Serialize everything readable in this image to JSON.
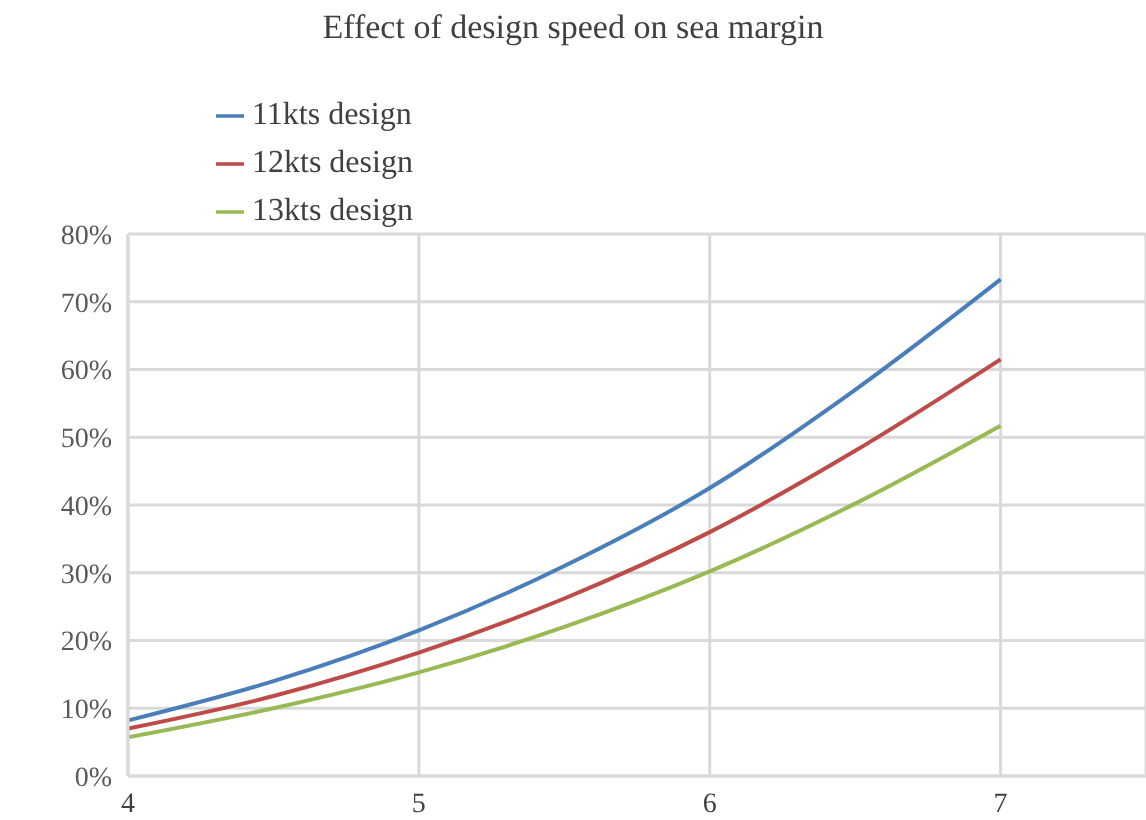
{
  "chart_data": {
    "type": "line",
    "title": "Effect of design speed on sea margin",
    "x": [
      4,
      4.5,
      5,
      5.5,
      6,
      6.5,
      7
    ],
    "series": [
      {
        "name": "11kts design",
        "color": "#4a7ebb",
        "values": [
          8.2,
          14,
          21.5,
          31,
          42.5,
          57,
          73.3
        ]
      },
      {
        "name": "12kts design",
        "color": "#be4b48",
        "values": [
          7,
          11.8,
          18.2,
          26.2,
          36,
          48,
          61.5
        ]
      },
      {
        "name": "13kts design",
        "color": "#98b954",
        "values": [
          5.7,
          10,
          15.3,
          22,
          30.2,
          40.2,
          51.7
        ]
      }
    ],
    "xlim": [
      4,
      7.5
    ],
    "xticks": [
      4,
      5,
      6,
      7
    ],
    "ylim": [
      0,
      80
    ],
    "yticks": [
      {
        "value": 0,
        "label": "0%"
      },
      {
        "value": 10,
        "label": "10%"
      },
      {
        "value": 20,
        "label": "20%"
      },
      {
        "value": 30,
        "label": "30%"
      },
      {
        "value": 40,
        "label": "40%"
      },
      {
        "value": 50,
        "label": "50%"
      },
      {
        "value": 60,
        "label": "60%"
      },
      {
        "value": 70,
        "label": "70%"
      },
      {
        "value": 80,
        "label": "80%"
      }
    ],
    "grid": true,
    "legend": "top left",
    "marker": "none",
    "line_style": "solid"
  }
}
